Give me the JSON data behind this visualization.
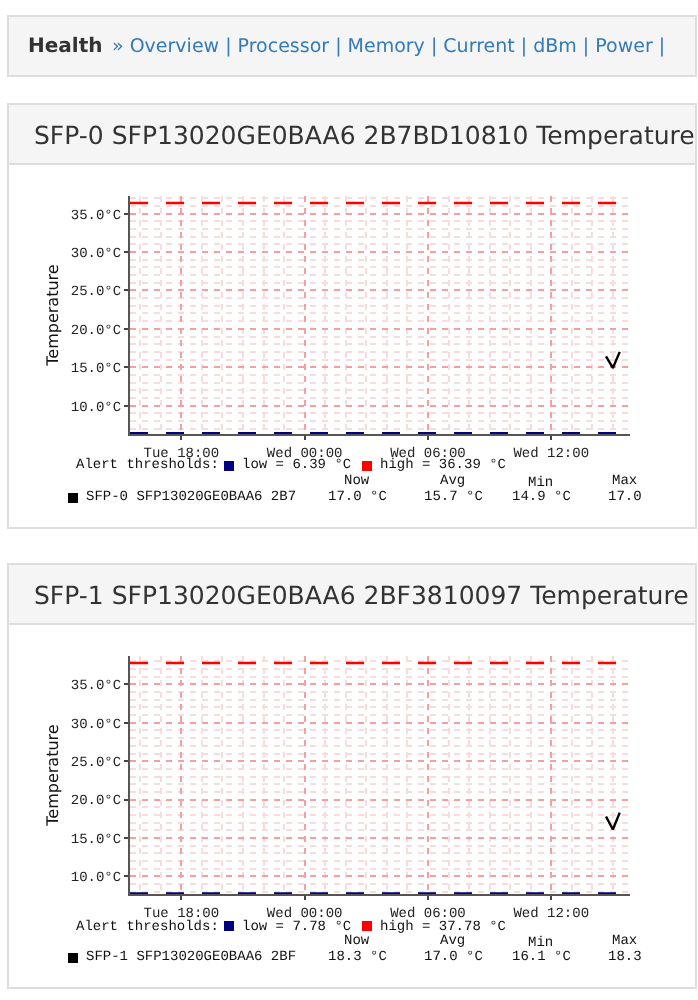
{
  "chart_data": [
    {
      "type": "other",
      "title": "Health",
      "annotations": [
        "» Overview | Processor | Memory | Current | dBm | Power |"
      ]
    },
    {
      "type": "line",
      "title": "SFP-0 SFP13020GE0BAA6 2B7BD10810 Temperature",
      "ylabel": "Temperature",
      "categories": [
        null,
        null,
        null,
        null,
        null,
        null,
        null,
        "Tue 18:00",
        null,
        null,
        null,
        null,
        null,
        null,
        null,
        null,
        null,
        null,
        null,
        null,
        null,
        null,
        null,
        null,
        null,
        "Wed 00:00",
        null,
        null,
        null,
        null,
        null,
        null,
        null,
        null,
        null,
        null,
        null,
        null,
        null,
        null,
        null,
        null,
        null,
        "Wed 06:00",
        null,
        null,
        null,
        null,
        null,
        null,
        null,
        null,
        null,
        null,
        null,
        null,
        null,
        null,
        null,
        null,
        null,
        "Wed 12:00",
        null,
        null,
        null,
        null,
        null,
        null,
        null,
        null,
        null,
        null,
        null
      ],
      "series": [
        {
          "name": "SFP-0 SFP13020GE0BAA6 2B7",
          "color": "#000000",
          "values": [
            null,
            null,
            null,
            null,
            null,
            null,
            null,
            null,
            null,
            null,
            null,
            null,
            null,
            null,
            null,
            null,
            null,
            null,
            null,
            null,
            null,
            null,
            null,
            null,
            null,
            null,
            null,
            null,
            null,
            null,
            null,
            null,
            null,
            null,
            null,
            null,
            null,
            null,
            null,
            null,
            null,
            null,
            null,
            null,
            null,
            null,
            null,
            null,
            null,
            null,
            null,
            null,
            null,
            null,
            null,
            null,
            null,
            null,
            null,
            null,
            null,
            null,
            null,
            null,
            null,
            null,
            null,
            null,
            null,
            16.4,
            14.9,
            17.0,
            null
          ]
        }
      ],
      "ylim": [
        6.3,
        37.3
      ],
      "yticks": [
        {
          "value": 10,
          "label": "10.0°C"
        },
        {
          "value": 15,
          "label": "15.0°C"
        },
        {
          "value": 20,
          "label": "20.0°C"
        },
        {
          "value": 25,
          "label": "25.0°C"
        },
        {
          "value": 30,
          "label": "30.0°C"
        },
        {
          "value": 35,
          "label": "35.0°C"
        }
      ],
      "ref_lines": [
        {
          "axis": "y",
          "value": 6.39,
          "label": "low = 6.39 °C",
          "color": "#000080",
          "line_style": "dashed"
        },
        {
          "axis": "y",
          "value": 36.39,
          "label": "high = 36.39 °C",
          "color": "#ff0000",
          "line_style": "dashed"
        }
      ],
      "annotations": [
        "Alert thresholds:",
        "Now",
        "Avg",
        "Min",
        "Max",
        "17.0 °C",
        "15.7 °C",
        "14.9 °C",
        "17.0"
      ],
      "grid": true,
      "legend": "bottom left",
      "marker": "none",
      "line_style": "solid"
    },
    {
      "type": "line",
      "title": "SFP-1 SFP13020GE0BAA6 2BF3810097 Temperature",
      "ylabel": "Temperature",
      "categories": [
        null,
        null,
        null,
        null,
        null,
        null,
        null,
        "Tue 18:00",
        null,
        null,
        null,
        null,
        null,
        null,
        null,
        null,
        null,
        null,
        null,
        null,
        null,
        null,
        null,
        null,
        null,
        "Wed 00:00",
        null,
        null,
        null,
        null,
        null,
        null,
        null,
        null,
        null,
        null,
        null,
        null,
        null,
        null,
        null,
        null,
        null,
        "Wed 06:00",
        null,
        null,
        null,
        null,
        null,
        null,
        null,
        null,
        null,
        null,
        null,
        null,
        null,
        null,
        null,
        null,
        null,
        "Wed 12:00",
        null,
        null,
        null,
        null,
        null,
        null,
        null,
        null,
        null,
        null,
        null
      ],
      "series": [
        {
          "name": "SFP-1 SFP13020GE0BAA6 2BF",
          "color": "#000000",
          "values": [
            null,
            null,
            null,
            null,
            null,
            null,
            null,
            null,
            null,
            null,
            null,
            null,
            null,
            null,
            null,
            null,
            null,
            null,
            null,
            null,
            null,
            null,
            null,
            null,
            null,
            null,
            null,
            null,
            null,
            null,
            null,
            null,
            null,
            null,
            null,
            null,
            null,
            null,
            null,
            null,
            null,
            null,
            null,
            null,
            null,
            null,
            null,
            null,
            null,
            null,
            null,
            null,
            null,
            null,
            null,
            null,
            null,
            null,
            null,
            null,
            null,
            null,
            null,
            null,
            null,
            null,
            null,
            null,
            null,
            17.8,
            16.1,
            18.3,
            null
          ]
        }
      ],
      "ylim": [
        7.7,
        38.7
      ],
      "yticks": [
        {
          "value": 10,
          "label": "10.0°C"
        },
        {
          "value": 15,
          "label": "15.0°C"
        },
        {
          "value": 20,
          "label": "20.0°C"
        },
        {
          "value": 25,
          "label": "25.0°C"
        },
        {
          "value": 30,
          "label": "30.0°C"
        },
        {
          "value": 35,
          "label": "35.0°C"
        }
      ],
      "ref_lines": [
        {
          "axis": "y",
          "value": 7.78,
          "label": "low = 7.78 °C",
          "color": "#000080",
          "line_style": "dashed"
        },
        {
          "axis": "y",
          "value": 37.78,
          "label": "high = 37.78 °C",
          "color": "#ff0000",
          "line_style": "dashed"
        }
      ],
      "annotations": [
        "Alert thresholds:",
        "Now",
        "Avg",
        "Min",
        "Max",
        "18.3 °C",
        "17.0 °C",
        "16.1 °C",
        "18.3"
      ],
      "grid": true,
      "legend": "bottom left",
      "marker": "none",
      "line_style": "solid"
    }
  ]
}
